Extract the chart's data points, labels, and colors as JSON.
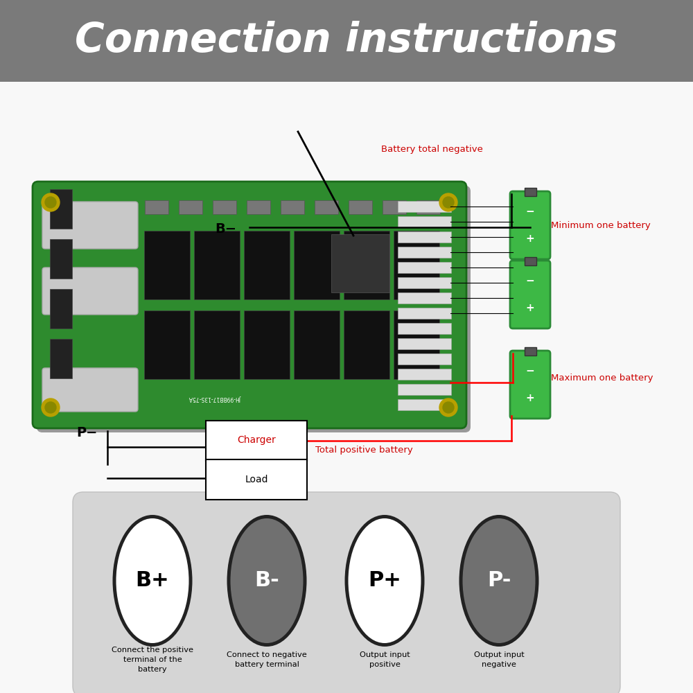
{
  "title": "Connection instructions",
  "title_bg": "#7a7a7a",
  "title_color": "#ffffff",
  "title_fontsize": 42,
  "bg_color": "#f0f0f0",
  "board_color": "#2e8b2e",
  "symbols": [
    "B+",
    "B-",
    "P+",
    "P-"
  ],
  "symbol_bg": [
    "#ffffff",
    "#707070",
    "#ffffff",
    "#707070"
  ],
  "symbol_text_color": [
    "#000000",
    "#ffffff",
    "#000000",
    "#ffffff"
  ],
  "descriptions": [
    "Connect the positive\nterminal of the\nbattery",
    "Connect to negative\nbattery terminal",
    "Output input\npositive",
    "Output input\nnegative"
  ],
  "red_color": "#cc0000",
  "panel_bg": "#d5d5d5"
}
